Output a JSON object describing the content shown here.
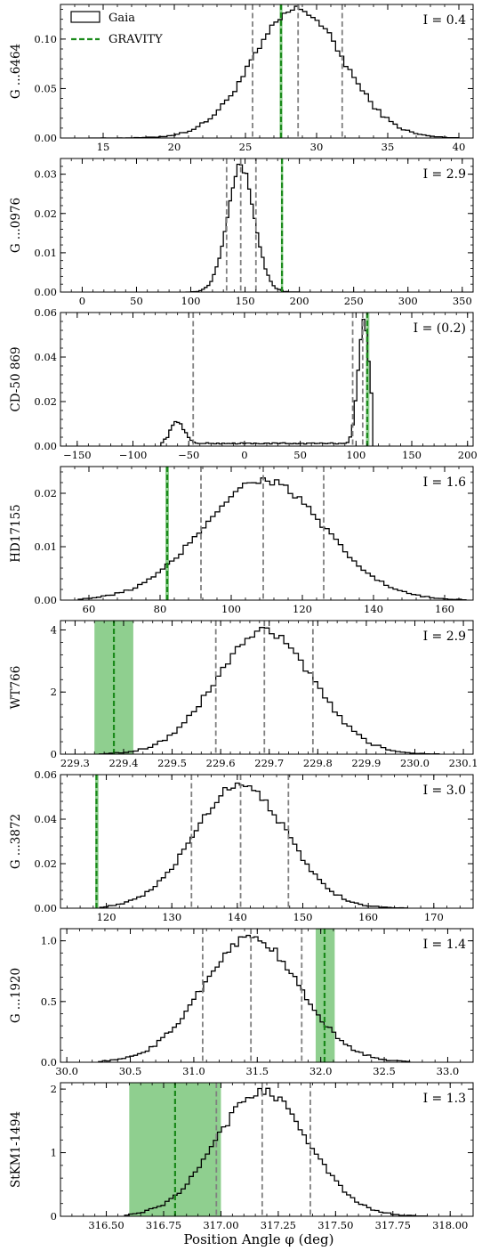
{
  "figure": {
    "xlabel": "Position Angle φ (deg)",
    "legend": {
      "placement": "top-left",
      "entries": [
        {
          "label": "Gaia",
          "style": "histogram",
          "color": "#000000"
        },
        {
          "label": "GRAVITY",
          "style": "dashed-line",
          "color": "#1a8a1a"
        }
      ]
    },
    "colors": {
      "hist": "#000000",
      "gaia_percentiles": "#808080",
      "gravity": "#1a8a1a",
      "gravity_band": "#8fcf8f"
    }
  },
  "chart_data": [
    {
      "type": "histogram",
      "ylabel": "G ...6464",
      "annotation": "I = 0.4",
      "xlim": [
        12,
        41
      ],
      "ylim": [
        0,
        0.135
      ],
      "xticks": [
        15,
        20,
        25,
        30,
        35,
        40
      ],
      "xtick_labels": [
        "15",
        "20",
        "25",
        "30",
        "35",
        "40"
      ],
      "yticks": [
        0,
        0.05,
        0.1
      ],
      "ytick_labels": [
        "0.00",
        "0.05",
        "0.10"
      ],
      "dist": {
        "kind": "gaussian",
        "mu": 28.7,
        "sigma": 3.2,
        "peak": 0.13,
        "range": [
          14,
          40
        ],
        "bins": 90
      },
      "gaia_percentiles": [
        25.5,
        28.7,
        31.8
      ],
      "gravity": {
        "value": 27.5,
        "lo": 27.4,
        "hi": 27.6
      }
    },
    {
      "type": "histogram",
      "ylabel": "G ...0976",
      "annotation": "I = 2.9",
      "xlim": [
        -20,
        360
      ],
      "ylim": [
        0,
        0.034
      ],
      "xticks": [
        0,
        50,
        100,
        150,
        200,
        250,
        300,
        350
      ],
      "xtick_labels": [
        "0",
        "50",
        "100",
        "150",
        "200",
        "250",
        "300",
        "350"
      ],
      "yticks": [
        0,
        0.01,
        0.02,
        0.03
      ],
      "ytick_labels": [
        "0.00",
        "0.01",
        "0.02",
        "0.03"
      ],
      "dist": {
        "kind": "gaussian",
        "mu": 146,
        "sigma": 12.5,
        "peak": 0.032,
        "range": [
          95,
          200
        ],
        "bins": 42
      },
      "gaia_percentiles": [
        133,
        146,
        160
      ],
      "gravity": {
        "value": 184,
        "lo": 183,
        "hi": 185
      }
    },
    {
      "type": "histogram",
      "ylabel": "CD-50 869",
      "annotation": "I = (0.2)",
      "xlim": [
        -165,
        205
      ],
      "ylim": [
        0,
        0.06
      ],
      "xticks": [
        -150,
        -100,
        -50,
        0,
        50,
        100,
        150,
        200
      ],
      "xtick_labels": [
        "−150",
        "−100",
        "−50",
        "0",
        "50",
        "100",
        "150",
        "200"
      ],
      "yticks": [
        0,
        0.02,
        0.04,
        0.06
      ],
      "ytick_labels": [
        "0.00",
        "0.02",
        "0.04",
        "0.06"
      ],
      "dist": {
        "kind": "bimodal",
        "range": [
          -75,
          115
        ],
        "bins": 80,
        "components": [
          {
            "mu": -60,
            "sigma": 6,
            "peak": 0.01
          },
          {
            "mu": 107,
            "sigma": 5,
            "peak": 0.055
          }
        ],
        "baseline": 0.0012
      },
      "gaia_percentiles": [
        -46,
        97,
        106
      ],
      "gravity": {
        "value": 110,
        "lo": 109,
        "hi": 112
      }
    },
    {
      "type": "histogram",
      "ylabel": "HD17155",
      "annotation": "I = 1.6",
      "xlim": [
        52,
        168
      ],
      "ylim": [
        0,
        0.025
      ],
      "xticks": [
        60,
        80,
        100,
        120,
        140,
        160
      ],
      "xtick_labels": [
        "60",
        "80",
        "100",
        "120",
        "140",
        "160"
      ],
      "yticks": [
        0,
        0.01,
        0.02
      ],
      "ytick_labels": [
        "0.00",
        "0.01",
        "0.02"
      ],
      "dist": {
        "kind": "gaussian",
        "mu": 109,
        "sigma": 17,
        "peak": 0.0225,
        "range": [
          57,
          166
        ],
        "bins": 85
      },
      "gaia_percentiles": [
        91.5,
        109,
        126
      ],
      "gravity": {
        "value": 82,
        "lo": 81.5,
        "hi": 82.5
      }
    },
    {
      "type": "histogram",
      "ylabel": "WT766",
      "annotation": "I = 2.9",
      "xlim": [
        229.27,
        230.12
      ],
      "ylim": [
        0,
        4.3
      ],
      "xticks": [
        229.3,
        229.4,
        229.5,
        229.6,
        229.7,
        229.8,
        229.9,
        230.0,
        230.1
      ],
      "xtick_labels": [
        "229.3",
        "229.4",
        "229.5",
        "229.6",
        "229.7",
        "229.8",
        "229.9",
        "230.0",
        "230.1"
      ],
      "yticks": [
        0,
        2,
        4
      ],
      "ytick_labels": [
        "0",
        "2",
        "4"
      ],
      "dist": {
        "kind": "gaussian",
        "mu": 229.69,
        "sigma": 0.1,
        "peak": 3.95,
        "range": [
          229.35,
          230.05
        ],
        "bins": 70
      },
      "gaia_percentiles": [
        229.59,
        229.69,
        229.79
      ],
      "gravity": {
        "value": 229.38,
        "lo": 229.34,
        "hi": 229.42
      }
    },
    {
      "type": "histogram",
      "ylabel": "G ...3872",
      "annotation": "I = 3.0",
      "xlim": [
        113,
        176
      ],
      "ylim": [
        0,
        0.06
      ],
      "xticks": [
        120,
        130,
        140,
        150,
        160,
        170
      ],
      "xtick_labels": [
        "120",
        "130",
        "140",
        "150",
        "160",
        "170"
      ],
      "yticks": [
        0,
        0.02,
        0.04,
        0.06
      ],
      "ytick_labels": [
        "0.00",
        "0.02",
        "0.04",
        "0.06"
      ],
      "dist": {
        "kind": "gaussian",
        "mu": 140.5,
        "sigma": 7,
        "peak": 0.056,
        "range": [
          119,
          166
        ],
        "bins": 75
      },
      "gaia_percentiles": [
        133,
        140.5,
        147.8
      ],
      "gravity": {
        "value": 118.5,
        "lo": 118.3,
        "hi": 118.8
      }
    },
    {
      "type": "histogram",
      "ylabel": "G ...1920",
      "annotation": "I = 1.4",
      "xlim": [
        29.95,
        33.2
      ],
      "ylim": [
        0,
        1.1
      ],
      "xticks": [
        30.0,
        30.5,
        31.0,
        31.5,
        32.0,
        32.5,
        33.0
      ],
      "xtick_labels": [
        "30.0",
        "30.5",
        "31.0",
        "31.5",
        "32.0",
        "32.5",
        "33.0"
      ],
      "yticks": [
        0,
        0.5,
        1.0
      ],
      "ytick_labels": [
        "0.0",
        "0.5",
        "1.0"
      ],
      "dist": {
        "kind": "gaussian",
        "mu": 31.45,
        "sigma": 0.38,
        "peak": 1.03,
        "range": [
          30.25,
          32.7
        ],
        "bins": 80
      },
      "gaia_percentiles": [
        31.07,
        31.45,
        31.85
      ],
      "gravity": {
        "value": 32.03,
        "lo": 31.96,
        "hi": 32.11
      }
    },
    {
      "type": "histogram",
      "ylabel": "StKM1-1494",
      "annotation": "I = 1.3",
      "xlim": [
        316.3,
        318.1
      ],
      "ylim": [
        0,
        2.1
      ],
      "xticks": [
        316.5,
        316.75,
        317.0,
        317.25,
        317.5,
        317.75,
        318.0
      ],
      "xtick_labels": [
        "316.50",
        "316.75",
        "317.00",
        "317.25",
        "317.50",
        "317.75",
        "318.00"
      ],
      "yticks": [
        0,
        1,
        2
      ],
      "ytick_labels": [
        "0",
        "1",
        "2"
      ],
      "dist": {
        "kind": "gaussian",
        "mu": 317.18,
        "sigma": 0.2,
        "peak": 1.97,
        "range": [
          316.58,
          317.9
        ],
        "bins": 75
      },
      "gaia_percentiles": [
        316.98,
        317.18,
        317.39
      ],
      "gravity": {
        "value": 316.8,
        "lo": 316.6,
        "hi": 317.0
      }
    }
  ]
}
